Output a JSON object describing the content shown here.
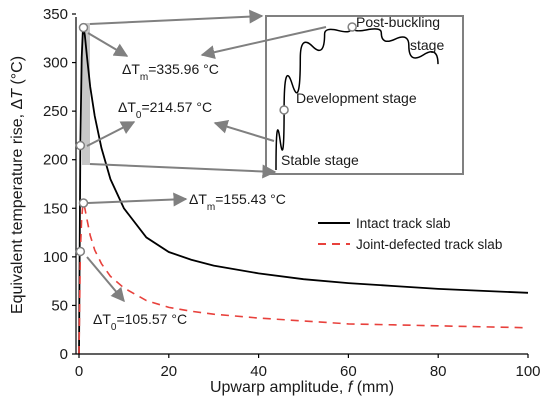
{
  "chart_data": {
    "type": "line",
    "x_label": "Upwarp amplitude, f (mm)",
    "y_label": "Equivalent temperature rise, ΔT (°C)",
    "x_lim": [
      0,
      100
    ],
    "y_lim": [
      0,
      350
    ],
    "x_ticks": [
      0,
      20,
      40,
      60,
      80,
      100
    ],
    "y_ticks": [
      0,
      50,
      100,
      150,
      200,
      250,
      300,
      350
    ],
    "grid": false,
    "legend_position": "right",
    "series": [
      {
        "name": "Intact track slab",
        "color": "#000000",
        "dash": "solid",
        "x": [
          0,
          0.3,
          0.6,
          0.85,
          1.0,
          1.3,
          1.8,
          2.5,
          3.5,
          5,
          7,
          10,
          15,
          20,
          25,
          30,
          40,
          50,
          60,
          70,
          80,
          90,
          100
        ],
        "y": [
          0,
          214.57,
          305,
          332,
          335.96,
          328,
          305,
          275,
          245,
          212,
          180,
          150,
          120,
          105,
          97,
          91,
          83,
          77,
          73,
          70,
          67,
          65,
          63
        ]
      },
      {
        "name": "Joint-defected track slab",
        "color": "#e8413c",
        "dash": "dashed",
        "x": [
          0,
          0.3,
          0.6,
          0.85,
          1.0,
          1.3,
          1.8,
          2.5,
          3.5,
          5,
          7,
          10,
          15,
          20,
          25,
          30,
          40,
          50,
          60,
          70,
          80,
          90,
          100
        ],
        "y": [
          0,
          105.57,
          140,
          153,
          155.43,
          150,
          138,
          122,
          107,
          93,
          80,
          68,
          55,
          48,
          44,
          41,
          37,
          34,
          31,
          30,
          29,
          28,
          27
        ]
      }
    ],
    "annotations": {
      "tm_intact": {
        "prefix": "ΔT",
        "sub": "m",
        "value": "=335.96 °C",
        "x": 1.0,
        "y": 335.96
      },
      "t0_intact": {
        "prefix": "ΔT",
        "sub": "0",
        "value": "=214.57 °C",
        "x": 0.3,
        "y": 214.57
      },
      "tm_joint": {
        "prefix": "ΔT",
        "sub": "m",
        "value": "=155.43 °C",
        "x": 1.0,
        "y": 155.43
      },
      "t0_joint": {
        "prefix": "ΔT",
        "sub": "0",
        "value": "=105.57 °C",
        "x": 0.3,
        "y": 105.57
      }
    },
    "inset": {
      "labels": {
        "post_line1": "Post-buckling",
        "post_line2": "stage",
        "development": "Development stage",
        "stable": "Stable stage"
      },
      "curve": [
        {
          "t": 0.0,
          "v": 0.0
        },
        {
          "t": 0.05,
          "v": 0.42
        },
        {
          "t": 0.15,
          "v": 0.78
        },
        {
          "t": 0.3,
          "v": 0.95
        },
        {
          "t": 0.47,
          "v": 1.0
        },
        {
          "t": 0.65,
          "v": 0.96
        },
        {
          "t": 0.82,
          "v": 0.87
        },
        {
          "t": 1.0,
          "v": 0.74
        }
      ],
      "marker_stable": {
        "t": 0.05,
        "v": 0.42
      },
      "marker_peak": {
        "t": 0.47,
        "v": 1.0
      }
    }
  }
}
